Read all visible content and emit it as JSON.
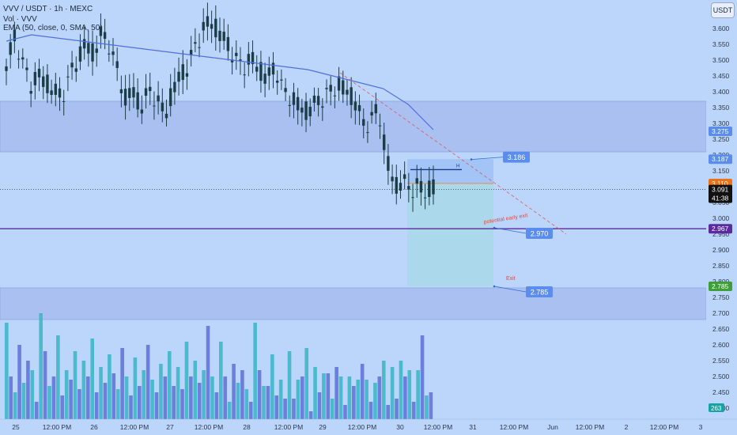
{
  "header": {
    "symbol_line": "VVV / USDT · 1h · MEXC",
    "volume_line": "Vol · VVV",
    "ema_line": "EMA (50, close, 0, SMA, 50)"
  },
  "currency_button": "USDT",
  "colors": {
    "background": "#bcd6fb",
    "zone_band": "#a9c0f0",
    "ema_line": "#4f6fe0",
    "candle": "#1b3d47",
    "vol_teal": "#3fb7c7",
    "vol_blue": "#6476d8",
    "purple_line": "#5b2a9e",
    "target_box": "#a9d8e9",
    "entry_box": "#9ec2f5",
    "label_blue": "#5b8def",
    "exit_green": "#3f9d3a",
    "current_orange": "#e8731b",
    "trend_red": "#e05a5a"
  },
  "chart_data": {
    "type": "candlestick",
    "title": "VVV / USDT · 1h · MEXC",
    "timeframe": "1h",
    "ylim": [
      2.38,
      3.7
    ],
    "y_ticks": [
      "3.600",
      "3.550",
      "3.500",
      "3.450",
      "3.400",
      "3.350",
      "3.300",
      "3.250",
      "3.200",
      "3.150",
      "3.100",
      "3.050",
      "3.000",
      "2.950",
      "2.900",
      "2.850",
      "2.800",
      "2.750",
      "2.700",
      "2.650",
      "2.600",
      "2.550",
      "2.500",
      "2.450",
      "2.400"
    ],
    "x_ticks": [
      "25",
      "12:00 PM",
      "26",
      "12:00 PM",
      "27",
      "12:00 PM",
      "28",
      "12:00 PM",
      "29",
      "12:00 PM",
      "30",
      "12:00 PM",
      "31",
      "12:00 PM",
      "Jun",
      "12:00 PM",
      "2",
      "12:00 PM",
      "3"
    ],
    "close_path": [
      3.48,
      3.57,
      3.5,
      3.42,
      3.45,
      3.43,
      3.4,
      3.38,
      3.45,
      3.5,
      3.55,
      3.52,
      3.58,
      3.55,
      3.47,
      3.38,
      3.4,
      3.35,
      3.4,
      3.38,
      3.32,
      3.4,
      3.45,
      3.48,
      3.55,
      3.6,
      3.62,
      3.58,
      3.55,
      3.5,
      3.48,
      3.5,
      3.47,
      3.44,
      3.48,
      3.4,
      3.38,
      3.35,
      3.34,
      3.36,
      3.38,
      3.4,
      3.42,
      3.4,
      3.38,
      3.3,
      3.3,
      3.35,
      3.2,
      3.1,
      3.12,
      3.09,
      3.1,
      3.08,
      3.1
    ],
    "ema_path": [
      3.56,
      3.58,
      3.57,
      3.56,
      3.55,
      3.54,
      3.53,
      3.52,
      3.51,
      3.5,
      3.49,
      3.48,
      3.47,
      3.45,
      3.43,
      3.41,
      3.36,
      3.28
    ],
    "volume_series": [
      2.67,
      2.5,
      2.45,
      2.6,
      2.48,
      2.55,
      2.52,
      2.42,
      2.7,
      2.58,
      2.47,
      2.5,
      2.63,
      2.44,
      2.52,
      2.49,
      2.58,
      2.46,
      2.55,
      2.5,
      2.62,
      2.45,
      2.53,
      2.48,
      2.57,
      2.51,
      2.46,
      2.59,
      2.5,
      2.44,
      2.56,
      2.47,
      2.52,
      2.6,
      2.49,
      2.45,
      2.54,
      2.5,
      2.58,
      2.47,
      2.53,
      2.46,
      2.61,
      2.5,
      2.55,
      2.48,
      2.52,
      2.66,
      2.5,
      2.45
    ],
    "volume_label": "263",
    "horizontal_zones": [
      [
        3.21,
        3.37
      ],
      [
        2.68,
        2.78
      ]
    ],
    "purple_level": 2.967,
    "current_price": 3.091,
    "countdown": "41:38",
    "entry_price": 3.11,
    "zone_top_price": 3.275,
    "target_box_top_price": 3.187,
    "label_H": "H",
    "annotations": [
      {
        "text": "3.186",
        "price": 3.186
      },
      {
        "text": "2.970",
        "price": 2.97
      },
      {
        "text": "2.785",
        "price": 2.785
      },
      {
        "text": "potential early exit",
        "price": 2.98
      },
      {
        "text": "Exit",
        "price": 2.8
      }
    ],
    "price_badges": [
      {
        "text": "3.275",
        "price": 3.275
      },
      {
        "text": "3.187",
        "price": 3.187
      },
      {
        "text": "3.110",
        "price": 3.11
      },
      {
        "text": "2.967",
        "price": 2.967
      },
      {
        "text": "2.785",
        "price": 2.785
      }
    ],
    "grid": false
  }
}
